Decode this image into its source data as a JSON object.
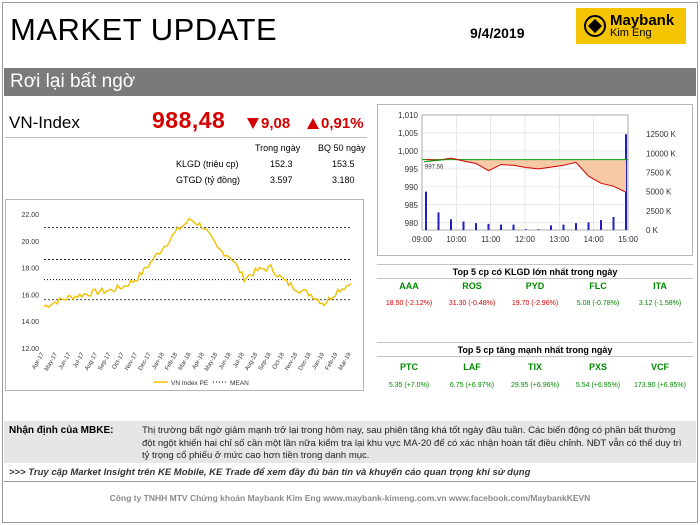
{
  "header": {
    "title": "MARKET UPDATE",
    "date": "9/4/2019",
    "logo_name": "Maybank",
    "logo_sub": "Kim Eng"
  },
  "headline": "Rơi lại bất ngờ",
  "index": {
    "name": "VN-Index",
    "value": "988,48",
    "change": "9,08",
    "percent": "0,91%"
  },
  "stats": {
    "col_today": "Trong ngày",
    "col_avg": "BQ 50 ngày",
    "rows": [
      {
        "label": "KLGD (triệu cp)",
        "today": "152.3",
        "avg": "153.5"
      },
      {
        "label": "GTGD (tỷ đồng)",
        "today": "3.597",
        "avg": "3.180"
      }
    ]
  },
  "chart_data": [
    {
      "type": "line",
      "title": "",
      "ylim": [
        12,
        22
      ],
      "y_ticks": [
        "12.00",
        "14.00",
        "16.00",
        "18.00",
        "20.00",
        "22.00"
      ],
      "x_ticks": [
        "Apr-17",
        "May-17",
        "Jun-17",
        "Jul-17",
        "Aug-17",
        "Sep-17",
        "Oct-17",
        "Nov-17",
        "Dec-17",
        "Jan-18",
        "Feb-18",
        "Mar-18",
        "Apr-18",
        "May-18",
        "Jun-18",
        "Jul-18",
        "Aug-18",
        "Sep-18",
        "Oct-18",
        "Nov-18",
        "Dec-18",
        "Jan-19",
        "Feb-19",
        "Mar-19"
      ],
      "series": [
        {
          "name": "VN Index PE",
          "color": "#f0c000",
          "values": [
            15.1,
            15.5,
            15.8,
            16.0,
            16.2,
            16.3,
            16.6,
            17.2,
            18.4,
            19.6,
            20.8,
            21.6,
            21.0,
            19.4,
            18.8,
            17.2,
            17.8,
            18.0,
            17.0,
            16.4,
            16.0,
            15.3,
            16.3,
            16.8
          ]
        },
        {
          "name": "MEAN",
          "color": "#000000",
          "line_style": "dotted",
          "values": [
            17.1,
            17.1,
            17.1,
            17.1,
            17.1,
            17.1,
            17.1,
            17.1,
            17.1,
            17.1,
            17.1,
            17.1,
            17.1,
            17.1,
            17.1,
            17.1,
            17.1,
            17.1,
            17.1,
            17.1,
            17.1,
            17.1,
            17.1,
            17.1
          ]
        }
      ],
      "bands": [
        15.6,
        18.6,
        21.0
      ],
      "legend": "bottom",
      "grid": false
    },
    {
      "type": "line",
      "title": "",
      "ylim": [
        978,
        1010
      ],
      "y_left_ticks": [
        "980",
        "985",
        "990",
        "995",
        "1,000",
        "1,005",
        "1,010"
      ],
      "y_right_ticks": [
        "0 K",
        "2500 K",
        "5000 K",
        "7500 K",
        "10000 K",
        "12500 K"
      ],
      "x_ticks": [
        "09:00",
        "10:00",
        "11:00",
        "12:00",
        "13:00",
        "14:00",
        "15:00"
      ],
      "reference": 997.6,
      "reference_label": "997.56",
      "series": [
        {
          "name": "VN-Index",
          "color": "#d40000",
          "values": [
            997.6,
            997.4,
            998.0,
            997.2,
            996.5,
            994.5,
            996.2,
            996.0,
            995.4,
            995.0,
            995.5,
            996.0,
            996.8,
            993.0,
            991.0,
            990.2,
            988.5
          ]
        }
      ],
      "volume": {
        "color": "#2020c0",
        "values": [
          5000,
          2300,
          1400,
          1100,
          900,
          800,
          700,
          700,
          100,
          100,
          600,
          700,
          900,
          1000,
          1300,
          1700,
          12500
        ]
      },
      "fill_color": "#f7c9a4",
      "grid": true
    }
  ],
  "top_volume": {
    "title": "Top 5 cp có KLGD lớn nhất trong ngày",
    "items": [
      {
        "ticker": "AAA",
        "value": "18.50 (-2.12%)",
        "dir": "down"
      },
      {
        "ticker": "ROS",
        "value": "31.30 (-0.48%)",
        "dir": "down"
      },
      {
        "ticker": "PYD",
        "value": "19.70 (-2.96%)",
        "dir": "down"
      },
      {
        "ticker": "FLC",
        "value": "5.08 (-0.78%)",
        "dir": "up"
      },
      {
        "ticker": "ITA",
        "value": "3.12 (-1.58%)",
        "dir": "up"
      }
    ]
  },
  "top_gainers": {
    "title": "Top 5 cp tăng mạnh nhất trong ngày",
    "items": [
      {
        "ticker": "PTC",
        "value": "5.35 (+7.0%)"
      },
      {
        "ticker": "LAF",
        "value": "6.75 (+6.97%)"
      },
      {
        "ticker": "TIX",
        "value": "29.95 (+6.96%)"
      },
      {
        "ticker": "PXS",
        "value": "5.54 (+6.95%)"
      },
      {
        "ticker": "VCF",
        "value": "173.90 (+6.95%)"
      }
    ]
  },
  "comment": {
    "label": "Nhận định của MBKE:",
    "text": "Thị trường bất ngờ giảm mạnh trở lại trong hôm nay, sau phiên tăng khá tốt ngày đầu tuần. Các biến động có phần bất thường đột ngột khiến hai chỉ số cần một lần nữa kiểm tra lại khu vực MA-20 để có xác nhận hoàn tất điều chỉnh. NĐT vẫn có thể duy trì tỷ trọng cổ phiếu ở mức cao hơn tiền trong danh mục."
  },
  "link_text": ">>> Truy cập Market Insight trên KE Mobile, KE Trade để xem đầy đủ bản tin và khuyến cáo quan trọng khi sử dụng",
  "footer": "Công ty TNHH MTV Chứng khoán Maybank Kim Eng      www.maybank-kimeng.com.vn      www.facebook.com/MaybankKEVN"
}
